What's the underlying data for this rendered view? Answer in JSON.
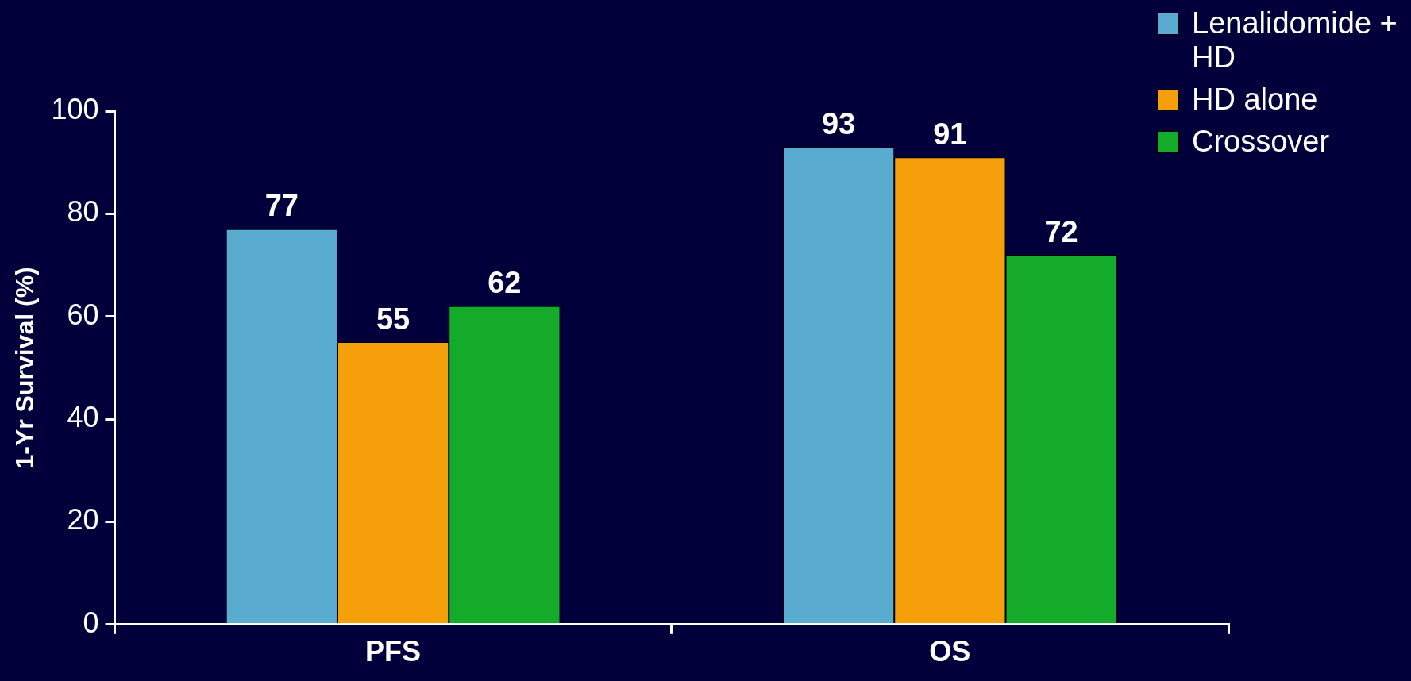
{
  "chart_data": {
    "type": "bar",
    "ylabel": "1-Yr Survival (%)",
    "categories": [
      "PFS",
      "OS"
    ],
    "series": [
      {
        "name": "Lenalidomide + HD",
        "color": "#5aabd0",
        "values": [
          77,
          93
        ]
      },
      {
        "name": "HD alone",
        "color": "#f5a00a",
        "values": [
          55,
          91
        ]
      },
      {
        "name": "Crossover",
        "color": "#14ab2a",
        "values": [
          62,
          72
        ]
      }
    ],
    "ylim": [
      0,
      100
    ],
    "yticks": [
      0,
      20,
      40,
      60,
      80,
      100
    ],
    "grid": false,
    "legend": "top right",
    "data_labels": true
  }
}
